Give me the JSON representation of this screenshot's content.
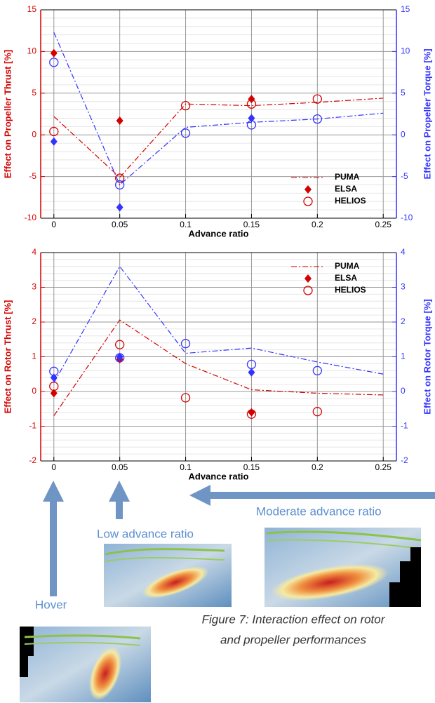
{
  "chart_data": [
    {
      "type": "line",
      "xlabel": "Advance ratio",
      "ylabel": "Effect on Propeller Thrust [%]",
      "y2label": "Effect on Propeller Torque [%]",
      "xlim": [
        -0.01,
        0.26
      ],
      "xticks": [
        0,
        0.05,
        0.1,
        0.15,
        0.2,
        0.25
      ],
      "ylim": [
        -10,
        15
      ],
      "yticks": [
        -10,
        -5,
        0,
        5,
        10,
        15
      ],
      "y2lim": [
        -10,
        15
      ],
      "y2ticks": [
        -10,
        -5,
        0,
        5,
        10,
        15
      ],
      "grid": true,
      "legend": "lower right",
      "series": [
        {
          "name": "PUMA",
          "color": "#d40000",
          "style": "dashdot",
          "x": [
            0,
            0.05,
            0.1,
            0.15,
            0.2,
            0.25
          ],
          "values": [
            2.2,
            -5.1,
            3.7,
            3.5,
            3.9,
            4.4
          ]
        },
        {
          "name": "ELSA",
          "color": "#d40000",
          "marker": "diamond",
          "x": [
            0,
            0.05,
            0.15
          ],
          "values": [
            9.8,
            1.7,
            4.3
          ]
        },
        {
          "name": "HELIOS",
          "color": "#d40000",
          "marker": "circle",
          "x": [
            0,
            0.05,
            0.1,
            0.15,
            0.2
          ],
          "values": [
            0.4,
            -5.2,
            3.5,
            3.7,
            4.3
          ]
        },
        {
          "color": "#3333ff",
          "style": "dashdot",
          "axis": "y2",
          "x": [
            0,
            0.05,
            0.1,
            0.15,
            0.2,
            0.25
          ],
          "values": [
            12.3,
            -6.0,
            0.9,
            1.5,
            1.9,
            2.6
          ]
        },
        {
          "color": "#3333ff",
          "marker": "diamond",
          "axis": "y2",
          "x": [
            0,
            0.05,
            0.15
          ],
          "values": [
            -0.8,
            -8.7,
            2.0
          ]
        },
        {
          "color": "#3333ff",
          "marker": "circle",
          "axis": "y2",
          "x": [
            0,
            0.05,
            0.1,
            0.15,
            0.2
          ],
          "values": [
            8.7,
            -6.0,
            0.2,
            1.2,
            1.9
          ]
        }
      ]
    },
    {
      "type": "line",
      "xlabel": "Advance ratio",
      "ylabel": "Effect on Rotor Thrust [%]",
      "y2label": "Effect on Rotor Torque [%]",
      "xlim": [
        -0.01,
        0.26
      ],
      "xticks": [
        0,
        0.05,
        0.1,
        0.15,
        0.2,
        0.25
      ],
      "ylim": [
        -2,
        4
      ],
      "yticks": [
        -2,
        -1,
        0,
        1,
        2,
        3,
        4
      ],
      "y2lim": [
        -2,
        4
      ],
      "y2ticks": [
        -2,
        -1,
        0,
        1,
        2,
        3,
        4
      ],
      "grid": true,
      "legend": "upper right",
      "series": [
        {
          "name": "PUMA",
          "color": "#d40000",
          "style": "dashdot",
          "x": [
            0,
            0.05,
            0.1,
            0.15,
            0.2,
            0.25
          ],
          "values": [
            -0.7,
            2.06,
            0.8,
            0.05,
            -0.05,
            -0.1
          ]
        },
        {
          "name": "ELSA",
          "color": "#d40000",
          "marker": "diamond",
          "x": [
            0,
            0.05,
            0.15
          ],
          "values": [
            -0.05,
            0.93,
            -0.6
          ]
        },
        {
          "name": "HELIOS",
          "color": "#d40000",
          "marker": "circle",
          "x": [
            0,
            0.05,
            0.1,
            0.15,
            0.2
          ],
          "values": [
            0.15,
            1.35,
            -0.18,
            -0.65,
            -0.58
          ]
        },
        {
          "color": "#3333ff",
          "style": "dashdot",
          "axis": "y2",
          "x": [
            0,
            0.05,
            0.1,
            0.15,
            0.2,
            0.25
          ],
          "values": [
            0.25,
            3.6,
            1.1,
            1.25,
            0.85,
            0.5
          ]
        },
        {
          "color": "#3333ff",
          "marker": "diamond",
          "axis": "y2",
          "x": [
            0,
            0.05,
            0.15
          ],
          "values": [
            0.4,
            1.0,
            0.55
          ]
        },
        {
          "color": "#3333ff",
          "marker": "circle",
          "axis": "y2",
          "x": [
            0,
            0.05,
            0.1,
            0.15,
            0.2
          ],
          "values": [
            0.58,
            0.97,
            1.38,
            0.78,
            0.6
          ]
        }
      ]
    }
  ],
  "annotations": {
    "hover": "Hover",
    "low": "Low advance ratio",
    "moderate": "Moderate advance ratio"
  },
  "caption": [
    "Figure 7: Interaction effect on rotor",
    "and propeller performances"
  ]
}
